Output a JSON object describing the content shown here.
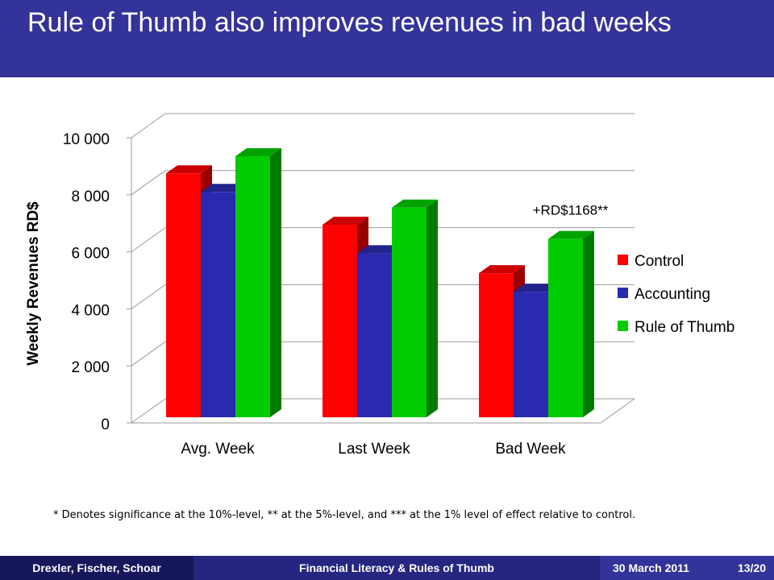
{
  "slide": {
    "title": "Rule of Thumb also improves revenues in bad weeks",
    "footnote": "* Denotes significance at the 10%-level, ** at the 5%-level, and *** at the 1% level of effect relative to control."
  },
  "footer": {
    "authors": "Drexler, Fischer, Schoar",
    "talk_title": "Financial Literacy & Rules of Thumb",
    "date": "30 March 2011",
    "page": "13/20"
  },
  "chart_data": {
    "type": "bar",
    "title": "",
    "xlabel": "",
    "ylabel": "Weekly Revenues RD$",
    "ylim": [
      0,
      10000
    ],
    "yticks": [
      0,
      2000,
      4000,
      6000,
      8000,
      10000
    ],
    "ytick_labels": [
      "0",
      "2 000",
      "4 000",
      "6 000",
      "8 000",
      "10 000"
    ],
    "categories": [
      "Avg. Week",
      "Last Week",
      "Bad Week"
    ],
    "series": [
      {
        "name": "Control",
        "color": "#ff0000",
        "values": [
          8750,
          6950,
          5250
        ]
      },
      {
        "name": "Accounting",
        "color": "#2a2ab0",
        "values": [
          8100,
          5950,
          4600
        ]
      },
      {
        "name": "Rule of Thumb",
        "color": "#00cc00",
        "values": [
          9350,
          7550,
          6450
        ]
      }
    ],
    "annotation": {
      "text": "+RD$1168**",
      "category": "Bad Week",
      "series": "Rule of Thumb"
    },
    "grid": true,
    "legend": "right",
    "style": "3d"
  }
}
